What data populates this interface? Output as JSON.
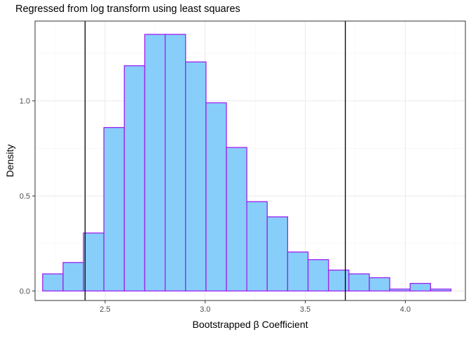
{
  "chart_data": {
    "type": "bar",
    "title": "Regressed from log transform using least squares",
    "xlabel": "Bootstrapped β Coefficient",
    "ylabel": "Density",
    "xlim": [
      2.15,
      4.3
    ],
    "ylim": [
      -0.05,
      1.42
    ],
    "xticks": [
      2.5,
      3.0,
      3.5,
      4.0
    ],
    "xtick_labels": [
      "2.5",
      "3.0",
      "3.5",
      "4.0"
    ],
    "yticks": [
      0.0,
      0.5,
      1.0
    ],
    "ytick_labels": [
      "0.0",
      "0.5",
      "1.0"
    ],
    "bin_width": 0.102,
    "bin_starts": [
      2.188,
      2.29,
      2.392,
      2.494,
      2.596,
      2.698,
      2.8,
      2.902,
      3.004,
      3.106,
      3.208,
      3.31,
      3.412,
      3.514,
      3.616,
      3.718,
      3.82,
      3.922,
      4.024,
      4.126
    ],
    "values": [
      0.09,
      0.15,
      0.305,
      0.86,
      1.185,
      1.35,
      1.35,
      1.205,
      0.99,
      0.755,
      0.47,
      0.39,
      0.205,
      0.165,
      0.11,
      0.09,
      0.07,
      0.01,
      0.04,
      0.01
    ],
    "vlines": [
      2.4,
      3.7
    ],
    "bar_fill": "#87CEFA",
    "bar_stroke": "#A020F0",
    "vline_color": "#000000",
    "panel_border": "#333333",
    "grid_major": "#ebebeb",
    "grid_minor": "#f5f5f5",
    "grid": true
  }
}
